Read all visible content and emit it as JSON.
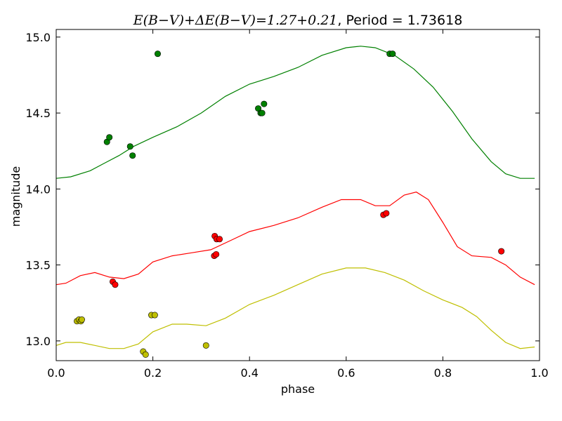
{
  "chart_data": {
    "type": "scatter",
    "title": {
      "math": "E(B−V)+ΔE(B−V)=1.27+0.21",
      "tail": ", Period = 1.73618"
    },
    "xlabel": "phase",
    "ylabel": "magnitude",
    "xlim": [
      0.0,
      1.0
    ],
    "ylim": [
      15.05,
      12.87
    ],
    "y_inverted": true,
    "grid": false,
    "x_ticks": [
      "0.0",
      "0.2",
      "0.4",
      "0.6",
      "0.8",
      "1.0"
    ],
    "y_ticks": [
      "13.0",
      "13.5",
      "14.0",
      "14.5",
      "15.0"
    ],
    "series": [
      {
        "color": "#bfbf00",
        "points": [
          {
            "x": 0.043,
            "y": 13.13,
            "err": 0.01
          },
          {
            "x": 0.047,
            "y": 13.14,
            "err": 0.01
          },
          {
            "x": 0.051,
            "y": 13.13,
            "err": 0.01
          },
          {
            "x": 0.053,
            "y": 13.14,
            "err": 0.01
          },
          {
            "x": 0.18,
            "y": 12.93,
            "err": 0.01
          },
          {
            "x": 0.185,
            "y": 12.91,
            "err": 0.01
          },
          {
            "x": 0.197,
            "y": 13.17,
            "err": 0.01
          },
          {
            "x": 0.204,
            "y": 13.17,
            "err": 0.01
          },
          {
            "x": 0.31,
            "y": 12.97,
            "err": 0.01
          }
        ],
        "curve": [
          {
            "x": 0.0,
            "y": 12.97
          },
          {
            "x": 0.02,
            "y": 12.99
          },
          {
            "x": 0.05,
            "y": 12.99
          },
          {
            "x": 0.08,
            "y": 12.97
          },
          {
            "x": 0.11,
            "y": 12.95
          },
          {
            "x": 0.14,
            "y": 12.95
          },
          {
            "x": 0.17,
            "y": 12.98
          },
          {
            "x": 0.2,
            "y": 13.06
          },
          {
            "x": 0.24,
            "y": 13.11
          },
          {
            "x": 0.27,
            "y": 13.11
          },
          {
            "x": 0.31,
            "y": 13.1
          },
          {
            "x": 0.35,
            "y": 13.15
          },
          {
            "x": 0.4,
            "y": 13.24
          },
          {
            "x": 0.45,
            "y": 13.3
          },
          {
            "x": 0.5,
            "y": 13.37
          },
          {
            "x": 0.55,
            "y": 13.44
          },
          {
            "x": 0.6,
            "y": 13.48
          },
          {
            "x": 0.64,
            "y": 13.48
          },
          {
            "x": 0.68,
            "y": 13.45
          },
          {
            "x": 0.72,
            "y": 13.4
          },
          {
            "x": 0.76,
            "y": 13.33
          },
          {
            "x": 0.8,
            "y": 13.27
          },
          {
            "x": 0.84,
            "y": 13.22
          },
          {
            "x": 0.87,
            "y": 13.16
          },
          {
            "x": 0.9,
            "y": 13.07
          },
          {
            "x": 0.93,
            "y": 12.99
          },
          {
            "x": 0.96,
            "y": 12.95
          },
          {
            "x": 0.99,
            "y": 12.96
          }
        ]
      },
      {
        "color": "#ff0000",
        "points": [
          {
            "x": 0.117,
            "y": 13.39,
            "err": 0.02
          },
          {
            "x": 0.122,
            "y": 13.37,
            "err": 0.02
          },
          {
            "x": 0.327,
            "y": 13.56,
            "err": 0.01
          },
          {
            "x": 0.331,
            "y": 13.57,
            "err": 0.01
          },
          {
            "x": 0.328,
            "y": 13.69,
            "err": 0.01
          },
          {
            "x": 0.332,
            "y": 13.67,
            "err": 0.01
          },
          {
            "x": 0.338,
            "y": 13.67,
            "err": 0.01
          },
          {
            "x": 0.677,
            "y": 13.83,
            "err": 0.01
          },
          {
            "x": 0.683,
            "y": 13.84,
            "err": 0.01
          },
          {
            "x": 0.921,
            "y": 13.59,
            "err": 0.01
          }
        ],
        "curve": [
          {
            "x": 0.0,
            "y": 13.37
          },
          {
            "x": 0.02,
            "y": 13.38
          },
          {
            "x": 0.05,
            "y": 13.43
          },
          {
            "x": 0.08,
            "y": 13.45
          },
          {
            "x": 0.11,
            "y": 13.42
          },
          {
            "x": 0.14,
            "y": 13.41
          },
          {
            "x": 0.17,
            "y": 13.44
          },
          {
            "x": 0.2,
            "y": 13.52
          },
          {
            "x": 0.24,
            "y": 13.56
          },
          {
            "x": 0.28,
            "y": 13.58
          },
          {
            "x": 0.32,
            "y": 13.6
          },
          {
            "x": 0.36,
            "y": 13.66
          },
          {
            "x": 0.4,
            "y": 13.72
          },
          {
            "x": 0.45,
            "y": 13.76
          },
          {
            "x": 0.5,
            "y": 13.81
          },
          {
            "x": 0.55,
            "y": 13.88
          },
          {
            "x": 0.59,
            "y": 13.93
          },
          {
            "x": 0.63,
            "y": 13.93
          },
          {
            "x": 0.66,
            "y": 13.89
          },
          {
            "x": 0.69,
            "y": 13.89
          },
          {
            "x": 0.72,
            "y": 13.96
          },
          {
            "x": 0.745,
            "y": 13.98
          },
          {
            "x": 0.77,
            "y": 13.93
          },
          {
            "x": 0.8,
            "y": 13.78
          },
          {
            "x": 0.83,
            "y": 13.62
          },
          {
            "x": 0.86,
            "y": 13.56
          },
          {
            "x": 0.9,
            "y": 13.55
          },
          {
            "x": 0.93,
            "y": 13.5
          },
          {
            "x": 0.96,
            "y": 13.42
          },
          {
            "x": 0.99,
            "y": 13.37
          }
        ]
      },
      {
        "color": "#008000",
        "points": [
          {
            "x": 0.105,
            "y": 14.31,
            "err": 0.03
          },
          {
            "x": 0.11,
            "y": 14.34,
            "err": 0.03
          },
          {
            "x": 0.153,
            "y": 14.28,
            "err": 0.02
          },
          {
            "x": 0.158,
            "y": 14.22,
            "err": 0.02
          },
          {
            "x": 0.21,
            "y": 14.89,
            "err": 0.04
          },
          {
            "x": 0.418,
            "y": 14.53,
            "err": 0.04
          },
          {
            "x": 0.423,
            "y": 14.5,
            "err": 0.04
          },
          {
            "x": 0.426,
            "y": 14.5,
            "err": 0.04
          },
          {
            "x": 0.43,
            "y": 14.56,
            "err": 0.04
          },
          {
            "x": 0.69,
            "y": 14.89,
            "err": 0.04
          },
          {
            "x": 0.696,
            "y": 14.89,
            "err": 0.04
          }
        ],
        "curve": [
          {
            "x": 0.0,
            "y": 14.07
          },
          {
            "x": 0.03,
            "y": 14.08
          },
          {
            "x": 0.07,
            "y": 14.12
          },
          {
            "x": 0.1,
            "y": 14.17
          },
          {
            "x": 0.13,
            "y": 14.22
          },
          {
            "x": 0.16,
            "y": 14.28
          },
          {
            "x": 0.2,
            "y": 14.34
          },
          {
            "x": 0.25,
            "y": 14.41
          },
          {
            "x": 0.3,
            "y": 14.5
          },
          {
            "x": 0.35,
            "y": 14.61
          },
          {
            "x": 0.4,
            "y": 14.69
          },
          {
            "x": 0.45,
            "y": 14.74
          },
          {
            "x": 0.5,
            "y": 14.8
          },
          {
            "x": 0.55,
            "y": 14.88
          },
          {
            "x": 0.6,
            "y": 14.93
          },
          {
            "x": 0.63,
            "y": 14.94
          },
          {
            "x": 0.66,
            "y": 14.93
          },
          {
            "x": 0.7,
            "y": 14.88
          },
          {
            "x": 0.74,
            "y": 14.79
          },
          {
            "x": 0.78,
            "y": 14.67
          },
          {
            "x": 0.82,
            "y": 14.51
          },
          {
            "x": 0.86,
            "y": 14.33
          },
          {
            "x": 0.9,
            "y": 14.18
          },
          {
            "x": 0.93,
            "y": 14.1
          },
          {
            "x": 0.96,
            "y": 14.07
          },
          {
            "x": 0.99,
            "y": 14.07
          }
        ]
      }
    ]
  }
}
